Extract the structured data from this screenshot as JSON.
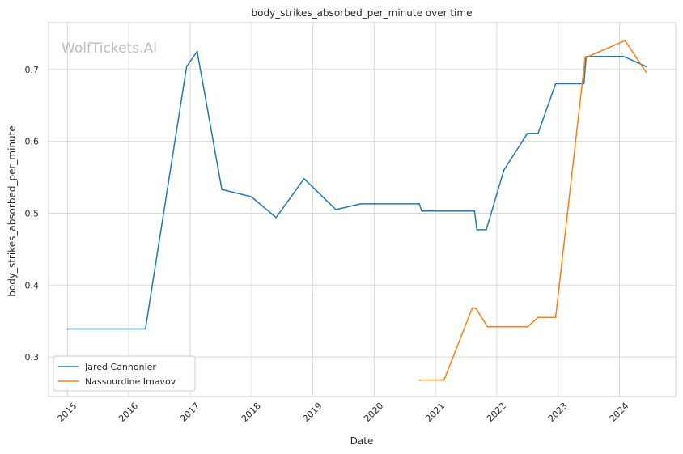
{
  "chart_data": {
    "type": "line",
    "title": "body_strikes_absorbed_per_minute over time",
    "xlabel": "Date",
    "ylabel": "body_strikes_absorbed_per_minute",
    "watermark": "WolfTickets.AI",
    "xlim": [
      "2014-09-10",
      "2024-12-01"
    ],
    "ylim": [
      0.245,
      0.765
    ],
    "x_ticks": [
      "2015",
      "2016",
      "2017",
      "2018",
      "2019",
      "2020",
      "2021",
      "2022",
      "2023",
      "2024"
    ],
    "y_ticks": [
      0.3,
      0.4,
      0.5,
      0.6,
      0.7
    ],
    "grid": true,
    "legend_position": "lower-left",
    "series": [
      {
        "name": "Jared Cannonier",
        "color": "#1f77b4",
        "points": [
          [
            "2015-01-01",
            0.339
          ],
          [
            "2016-03-01",
            0.339
          ],
          [
            "2016-04-09",
            0.339
          ],
          [
            "2016-12-10",
            0.704
          ],
          [
            "2017-02-11",
            0.725
          ],
          [
            "2017-07-08",
            0.533
          ],
          [
            "2017-12-30",
            0.523
          ],
          [
            "2018-05-27",
            0.494
          ],
          [
            "2018-11-10",
            0.548
          ],
          [
            "2019-05-18",
            0.505
          ],
          [
            "2019-10-12",
            0.513
          ],
          [
            "2020-01-01",
            0.513
          ],
          [
            "2020-09-26",
            0.513
          ],
          [
            "2020-10-10",
            0.503
          ],
          [
            "2021-03-01",
            0.503
          ],
          [
            "2021-08-21",
            0.503
          ],
          [
            "2021-09-04",
            0.477
          ],
          [
            "2021-10-30",
            0.477
          ],
          [
            "2022-02-12",
            0.56
          ],
          [
            "2022-07-02",
            0.611
          ],
          [
            "2022-09-03",
            0.611
          ],
          [
            "2022-12-17",
            0.68
          ],
          [
            "2023-06-03",
            0.68
          ],
          [
            "2023-06-17",
            0.718
          ],
          [
            "2024-01-01",
            0.718
          ],
          [
            "2024-01-27",
            0.718
          ],
          [
            "2024-06-08",
            0.704
          ]
        ]
      },
      {
        "name": "Nassourdine Imavov",
        "color": "#ff7f0e",
        "points": [
          [
            "2020-09-26",
            0.268
          ],
          [
            "2021-02-20",
            0.268
          ],
          [
            "2021-08-07",
            0.368
          ],
          [
            "2021-08-28",
            0.368
          ],
          [
            "2021-11-06",
            0.342
          ],
          [
            "2022-07-02",
            0.342
          ],
          [
            "2022-09-03",
            0.355
          ],
          [
            "2022-12-17",
            0.355
          ],
          [
            "2023-06-10",
            0.716
          ],
          [
            "2024-02-03",
            0.74
          ],
          [
            "2024-06-08",
            0.696
          ]
        ]
      }
    ]
  }
}
